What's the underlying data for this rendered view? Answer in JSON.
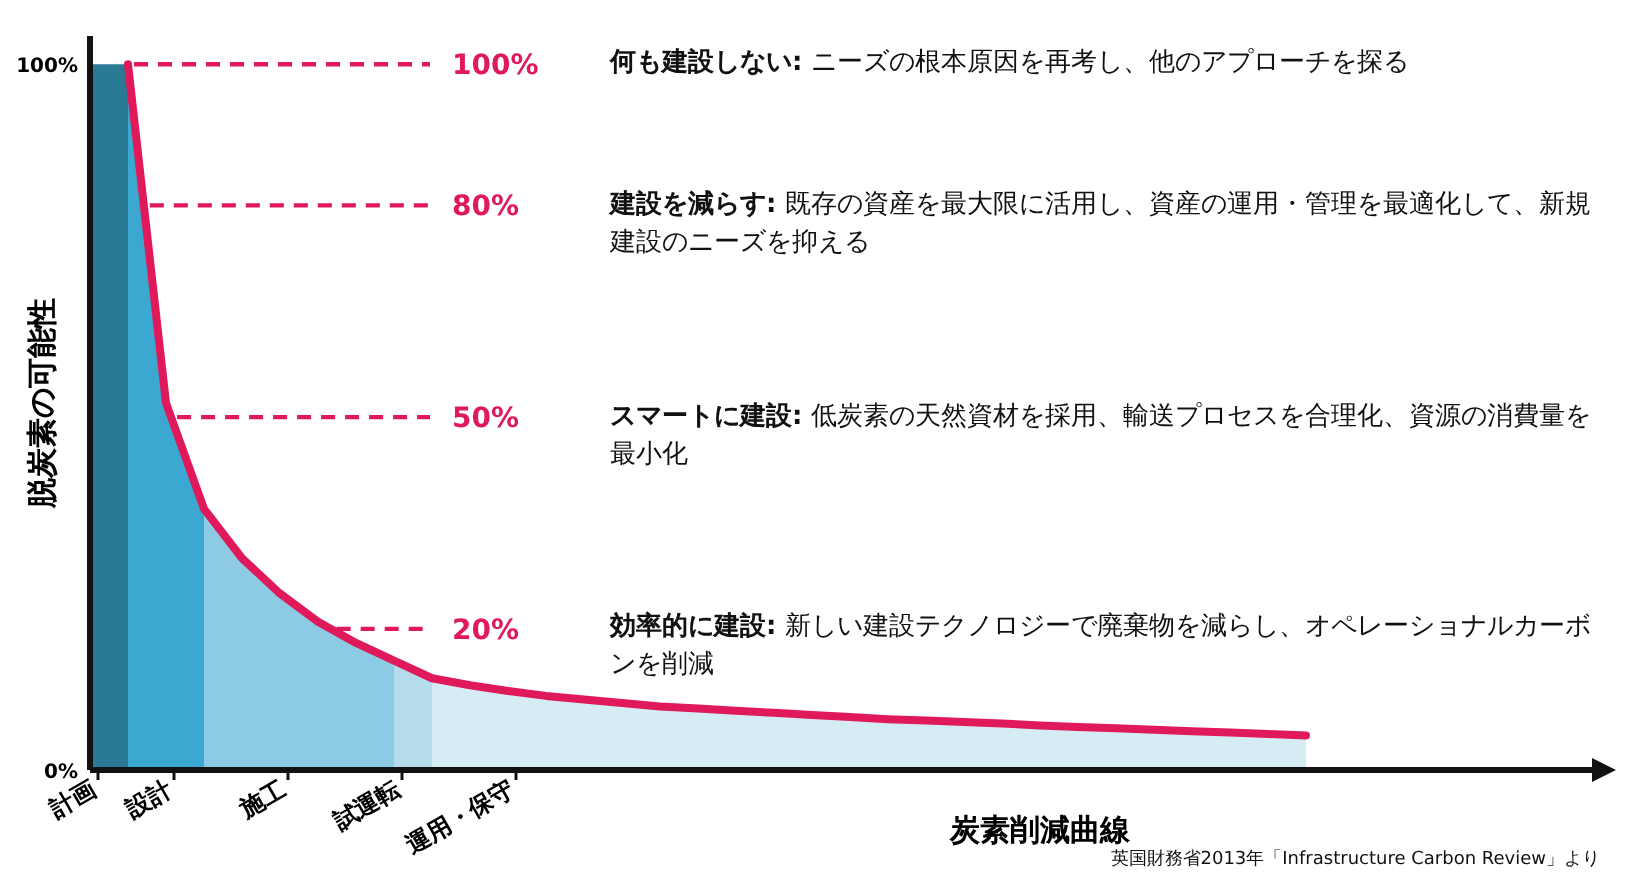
{
  "chart_data": {
    "type": "area",
    "ylabel": "脱炭素の可能性",
    "xlabel": "炭素削減曲線",
    "ylim": [
      0,
      104
    ],
    "yticks": [
      {
        "value": 0,
        "label": "0%"
      },
      {
        "value": 100,
        "label": "100%"
      }
    ],
    "categories": [
      "計画",
      null,
      "設計",
      null,
      null,
      "施工",
      null,
      null,
      "試運転",
      null,
      null,
      "運用・保守",
      null,
      null,
      null,
      null,
      null,
      null,
      null,
      null,
      null,
      null,
      null,
      null,
      null,
      null,
      null,
      null,
      null,
      null,
      null,
      null,
      null,
      null,
      null,
      null,
      null,
      null,
      null,
      null
    ],
    "series": [
      {
        "color": "#2a7a96",
        "values": [
          100,
          100,
          null,
          null,
          null,
          null,
          null,
          null,
          null,
          null,
          null,
          null,
          null,
          null,
          null,
          null,
          null,
          null,
          null,
          null,
          null,
          null,
          null,
          null,
          null,
          null,
          null,
          null,
          null,
          null,
          null,
          null,
          null,
          null,
          null,
          null,
          null,
          null,
          null,
          null
        ]
      },
      {
        "color": "#3aa8d0",
        "values": [
          null,
          100,
          52,
          37,
          null,
          null,
          null,
          null,
          null,
          null,
          null,
          null,
          null,
          null,
          null,
          null,
          null,
          null,
          null,
          null,
          null,
          null,
          null,
          null,
          null,
          null,
          null,
          null,
          null,
          null,
          null,
          null,
          null,
          null,
          null,
          null,
          null,
          null,
          null,
          null
        ]
      },
      {
        "color": "#8ccbe3",
        "values": [
          null,
          null,
          null,
          37,
          30,
          25,
          21,
          18,
          15.5,
          null,
          null,
          null,
          null,
          null,
          null,
          null,
          null,
          null,
          null,
          null,
          null,
          null,
          null,
          null,
          null,
          null,
          null,
          null,
          null,
          null,
          null,
          null,
          null,
          null,
          null,
          null,
          null,
          null,
          null,
          null
        ]
      },
      {
        "color": "#b5dcea",
        "values": [
          null,
          null,
          null,
          null,
          null,
          null,
          null,
          null,
          15.5,
          13,
          null,
          null,
          null,
          null,
          null,
          null,
          null,
          null,
          null,
          null,
          null,
          null,
          null,
          null,
          null,
          null,
          null,
          null,
          null,
          null,
          null,
          null,
          null,
          null,
          null,
          null,
          null,
          null,
          null,
          null
        ]
      },
      {
        "color": "#d6ecf4",
        "values": [
          null,
          null,
          null,
          null,
          null,
          null,
          null,
          null,
          null,
          13,
          12,
          11.2,
          10.5,
          10,
          9.5,
          9,
          8.7,
          8.4,
          8.1,
          7.8,
          7.5,
          7.2,
          7,
          6.8,
          6.6,
          6.3,
          6.1,
          5.9,
          5.7,
          5.5,
          5.3,
          5.1,
          4.9,
          null,
          null,
          null,
          null,
          null,
          null,
          null
        ]
      },
      {
        "type": "line",
        "color": "#e0195a",
        "values": [
          null,
          100,
          52,
          37,
          30,
          25,
          21,
          18,
          15.5,
          13,
          12,
          11.2,
          10.5,
          10,
          9.5,
          9,
          8.7,
          8.4,
          8.1,
          7.8,
          7.5,
          7.2,
          7,
          6.8,
          6.6,
          6.3,
          6.1,
          5.9,
          5.7,
          5.5,
          5.3,
          5.1,
          4.9,
          null,
          null,
          null,
          null,
          null,
          null,
          null
        ]
      }
    ],
    "ref_lines": [
      {
        "axis": "y",
        "value": 100,
        "label": "100%",
        "color": "#e0195a",
        "line_style": "dashed"
      },
      {
        "axis": "y",
        "value": 80,
        "label": "80%",
        "color": "#e0195a",
        "line_style": "dashed"
      },
      {
        "axis": "y",
        "value": 50,
        "label": "50%",
        "color": "#e0195a",
        "line_style": "dashed"
      },
      {
        "axis": "y",
        "value": 20,
        "label": "20%",
        "color": "#e0195a",
        "line_style": "dashed"
      }
    ],
    "annotations": [
      "**何も建設しない:** ニーズの根本原因を再考し、他のアプローチを探る",
      "**建設を減らす:** 既存の資産を最大限に活用し、資産の運用・管理を最適化して、新規建設のニーズを抑える",
      "**スマートに建設:** 低炭素の天然資材を採用、輸送プロセスを合理化、資源の消費量を最小化",
      "**効率的に建設:** 新しい建設テクノロジーで廃棄物を減らし、オペレーショナルカーボンを削減",
      "英国財務省2013年「Infrastructure Carbon Review」より"
    ]
  }
}
